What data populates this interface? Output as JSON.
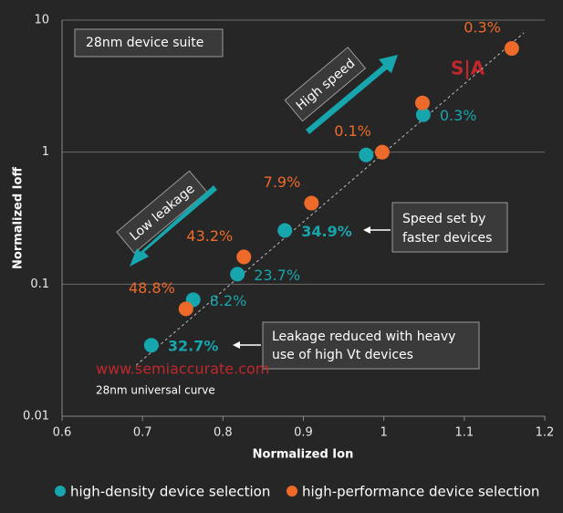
{
  "chart_data": {
    "type": "scatter",
    "x_label": "Normalized Ion",
    "y_label": "Normalized Ioff",
    "xlim": [
      0.6,
      1.2
    ],
    "xticks": [
      0.6,
      0.7,
      0.8,
      0.9,
      1,
      1.1,
      1.2
    ],
    "ylim": [
      0.01,
      10
    ],
    "yticks": [
      0.01,
      0.1,
      1,
      10
    ],
    "yscale": "log",
    "grid": true,
    "legend": "bottom",
    "series": [
      {
        "name": "high-density device selection",
        "color": "#17a5ae",
        "x": [
          0.711,
          0.763,
          0.818,
          0.877,
          0.978,
          1.049
        ],
        "values": [
          0.0345,
          0.0763,
          0.119,
          0.255,
          0.953,
          1.92
        ],
        "point_labels": [
          "32.7%",
          "8.2%",
          "23.7%",
          "34.9%",
          null,
          "0.3%"
        ]
      },
      {
        "name": "high-performance device selection",
        "color": "#ee6a2a",
        "x": [
          0.754,
          0.826,
          0.91,
          0.998,
          1.048,
          1.159
        ],
        "values": [
          0.065,
          0.161,
          0.411,
          1.0,
          2.36,
          6.1
        ],
        "point_labels": [
          "48.8%",
          "43.2%",
          "7.9%",
          "0.1%",
          null,
          "0.3%"
        ]
      }
    ],
    "reference_line": {
      "label": "28nm universal curve",
      "x": [
        0.692,
        1.174
      ],
      "y": [
        0.0243,
        8.0
      ]
    },
    "annotations": {
      "suite": "28nm device suite",
      "high_speed": "High speed",
      "low_leakage": "Low leakage",
      "speed_note": [
        "Speed set by",
        "faster devices"
      ],
      "leakage_note": [
        "Leakage reduced with heavy",
        "use of high Vt devices"
      ],
      "watermark": "www.semiaccurate.com",
      "logo": "S|A"
    }
  }
}
